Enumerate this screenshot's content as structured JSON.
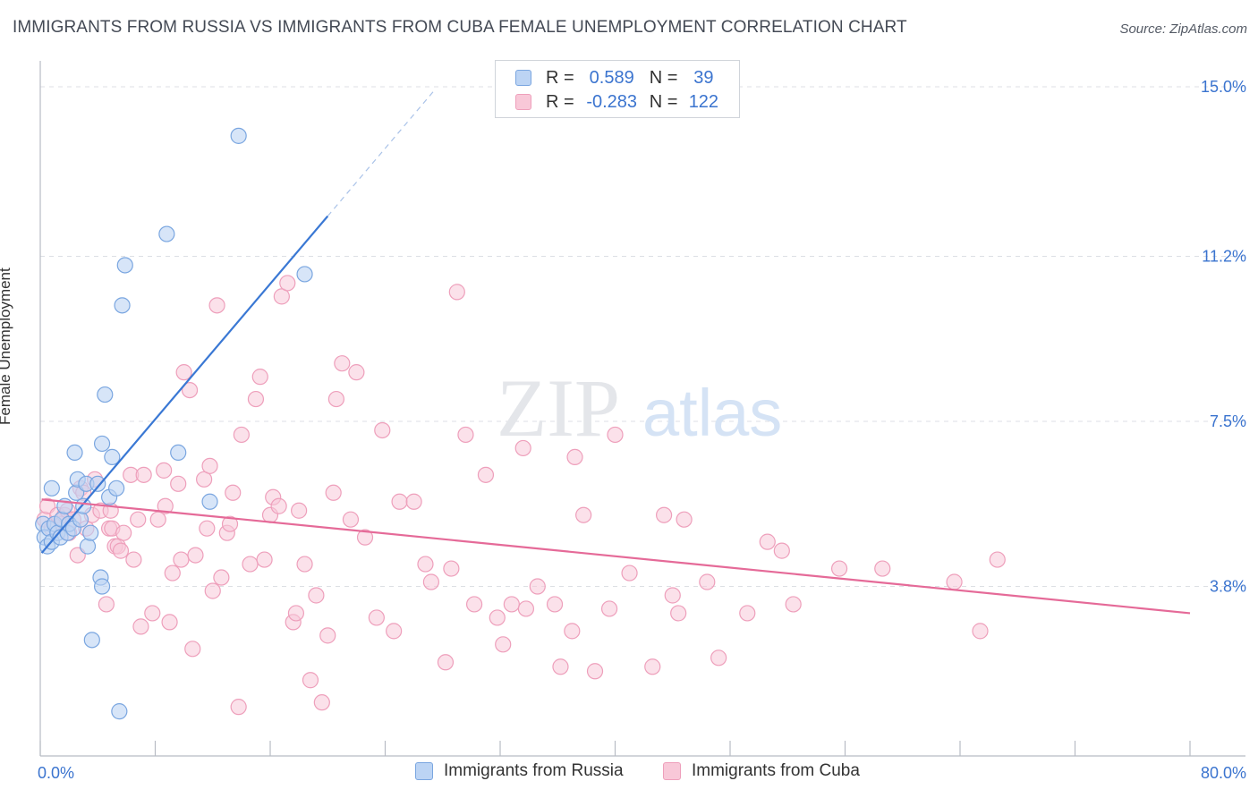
{
  "title": "IMMIGRANTS FROM RUSSIA VS IMMIGRANTS FROM CUBA FEMALE UNEMPLOYMENT CORRELATION CHART",
  "source": "Source: ZipAtlas.com",
  "watermark": {
    "zip": "ZIP",
    "atlas": "atlas"
  },
  "legend": {
    "russia": {
      "r_label": "R =",
      "r_value": "0.589",
      "n_label": "N =",
      "n_value": "39"
    },
    "cuba": {
      "r_label": "R =",
      "r_value": "-0.283",
      "n_label": "N =",
      "n_value": "122"
    }
  },
  "colors": {
    "russia_fill": "#bcd4f4",
    "russia_stroke": "#7aa6e0",
    "russia_line": "#3a78d4",
    "cuba_fill": "#f8c8d8",
    "cuba_stroke": "#ee9fbb",
    "cuba_line": "#e56a98",
    "axis_text": "#3b74cf",
    "grid": "#dcdfe4"
  },
  "chart_data": {
    "type": "scatter",
    "title": "IMMIGRANTS FROM RUSSIA VS IMMIGRANTS FROM CUBA FEMALE UNEMPLOYMENT CORRELATION CHART",
    "xlabel": "",
    "ylabel": "Female Unemployment",
    "xlim": [
      0,
      80
    ],
    "ylim": [
      0,
      15.5
    ],
    "x_tick_labels": [
      "0.0%",
      "80.0%"
    ],
    "y_ticks": [
      3.8,
      7.5,
      11.2,
      15.0
    ],
    "y_tick_labels": [
      "3.8%",
      "7.5%",
      "11.2%",
      "15.0%"
    ],
    "grid": true,
    "legend_position": "top-center",
    "series": [
      {
        "name": "Immigrants from Russia",
        "r": 0.589,
        "n": 39,
        "trend": {
          "x0": 0.1,
          "y0": 4.55,
          "x1": 20,
          "y1": 12.1,
          "dash_x1": 27.5,
          "dash_y1": 14.95
        },
        "points": [
          [
            0.2,
            5.2
          ],
          [
            0.3,
            4.9
          ],
          [
            0.5,
            4.7
          ],
          [
            0.6,
            5.1
          ],
          [
            0.8,
            4.8
          ],
          [
            0.8,
            6.0
          ],
          [
            1.0,
            5.2
          ],
          [
            1.2,
            5.0
          ],
          [
            1.4,
            4.9
          ],
          [
            1.5,
            5.3
          ],
          [
            1.7,
            5.6
          ],
          [
            1.9,
            5.0
          ],
          [
            2.0,
            5.2
          ],
          [
            2.3,
            5.1
          ],
          [
            2.4,
            6.8
          ],
          [
            2.5,
            5.9
          ],
          [
            2.6,
            6.2
          ],
          [
            2.8,
            5.3
          ],
          [
            3.0,
            5.6
          ],
          [
            3.2,
            6.1
          ],
          [
            3.3,
            4.7
          ],
          [
            3.5,
            5.0
          ],
          [
            3.6,
            2.6
          ],
          [
            4.0,
            6.1
          ],
          [
            4.2,
            4.0
          ],
          [
            4.3,
            3.8
          ],
          [
            4.3,
            7.0
          ],
          [
            4.5,
            8.1
          ],
          [
            4.8,
            5.8
          ],
          [
            5.0,
            6.7
          ],
          [
            5.3,
            6.0
          ],
          [
            5.5,
            1.0
          ],
          [
            5.7,
            10.1
          ],
          [
            5.9,
            11.0
          ],
          [
            8.8,
            11.7
          ],
          [
            9.6,
            6.8
          ],
          [
            11.8,
            5.7
          ],
          [
            13.8,
            13.9
          ],
          [
            18.4,
            10.8
          ]
        ]
      },
      {
        "name": "Immigrants from Cuba",
        "r": -0.283,
        "n": 122,
        "trend": {
          "x0": 0.1,
          "y0": 5.75,
          "x1": 80,
          "y1": 3.2
        },
        "points": [
          [
            0.3,
            5.3
          ],
          [
            0.5,
            5.6
          ],
          [
            0.8,
            5.1
          ],
          [
            1.2,
            5.4
          ],
          [
            1.5,
            5.2
          ],
          [
            1.7,
            5.4
          ],
          [
            1.9,
            5.5
          ],
          [
            2.0,
            5.0
          ],
          [
            2.3,
            5.3
          ],
          [
            2.6,
            4.5
          ],
          [
            2.8,
            6.0
          ],
          [
            3.0,
            5.9
          ],
          [
            3.2,
            5.1
          ],
          [
            3.6,
            5.4
          ],
          [
            3.8,
            6.2
          ],
          [
            4.2,
            5.5
          ],
          [
            4.6,
            3.4
          ],
          [
            4.8,
            5.1
          ],
          [
            4.9,
            5.5
          ],
          [
            5.0,
            5.1
          ],
          [
            5.2,
            4.7
          ],
          [
            5.4,
            4.7
          ],
          [
            5.6,
            4.6
          ],
          [
            5.8,
            5.0
          ],
          [
            6.3,
            6.3
          ],
          [
            6.5,
            4.4
          ],
          [
            6.8,
            5.3
          ],
          [
            7.0,
            2.9
          ],
          [
            7.2,
            6.3
          ],
          [
            7.8,
            3.2
          ],
          [
            8.2,
            5.3
          ],
          [
            8.6,
            6.4
          ],
          [
            8.7,
            5.6
          ],
          [
            9.0,
            3.0
          ],
          [
            9.2,
            4.1
          ],
          [
            9.6,
            6.1
          ],
          [
            9.8,
            4.4
          ],
          [
            10.0,
            8.6
          ],
          [
            10.4,
            8.2
          ],
          [
            10.6,
            2.4
          ],
          [
            10.8,
            4.5
          ],
          [
            11.4,
            6.2
          ],
          [
            11.6,
            5.1
          ],
          [
            11.8,
            6.5
          ],
          [
            12.0,
            3.7
          ],
          [
            12.3,
            10.1
          ],
          [
            12.6,
            4.0
          ],
          [
            13.0,
            5.0
          ],
          [
            13.2,
            5.2
          ],
          [
            13.4,
            5.9
          ],
          [
            13.8,
            1.1
          ],
          [
            14.0,
            7.2
          ],
          [
            14.6,
            4.3
          ],
          [
            15.0,
            8.0
          ],
          [
            15.3,
            8.5
          ],
          [
            15.6,
            4.4
          ],
          [
            16.0,
            5.4
          ],
          [
            16.2,
            5.8
          ],
          [
            16.6,
            5.6
          ],
          [
            16.8,
            10.3
          ],
          [
            17.2,
            10.6
          ],
          [
            17.6,
            3.0
          ],
          [
            17.8,
            3.2
          ],
          [
            18.0,
            5.5
          ],
          [
            18.4,
            4.3
          ],
          [
            18.8,
            1.7
          ],
          [
            19.2,
            3.6
          ],
          [
            19.6,
            1.2
          ],
          [
            20.0,
            2.7
          ],
          [
            20.4,
            5.9
          ],
          [
            20.6,
            8.0
          ],
          [
            21.0,
            8.8
          ],
          [
            21.6,
            5.3
          ],
          [
            22.0,
            8.6
          ],
          [
            22.6,
            4.9
          ],
          [
            23.4,
            3.1
          ],
          [
            23.8,
            7.3
          ],
          [
            24.6,
            2.8
          ],
          [
            25.0,
            5.7
          ],
          [
            26.0,
            5.7
          ],
          [
            26.8,
            4.3
          ],
          [
            27.2,
            3.9
          ],
          [
            28.2,
            2.1
          ],
          [
            28.6,
            4.2
          ],
          [
            29.0,
            10.4
          ],
          [
            29.6,
            7.2
          ],
          [
            30.2,
            3.4
          ],
          [
            31.0,
            6.3
          ],
          [
            31.8,
            3.1
          ],
          [
            32.2,
            2.5
          ],
          [
            32.8,
            3.4
          ],
          [
            33.6,
            6.9
          ],
          [
            33.8,
            3.3
          ],
          [
            34.6,
            3.8
          ],
          [
            35.8,
            3.4
          ],
          [
            36.2,
            2.0
          ],
          [
            37.0,
            2.8
          ],
          [
            37.2,
            6.7
          ],
          [
            37.8,
            5.4
          ],
          [
            38.6,
            1.9
          ],
          [
            39.6,
            3.3
          ],
          [
            40.0,
            7.2
          ],
          [
            41.0,
            4.1
          ],
          [
            42.6,
            2.0
          ],
          [
            43.4,
            5.4
          ],
          [
            44.0,
            3.6
          ],
          [
            44.4,
            3.2
          ],
          [
            44.8,
            5.3
          ],
          [
            46.4,
            3.9
          ],
          [
            47.2,
            2.2
          ],
          [
            49.2,
            3.2
          ],
          [
            50.6,
            4.8
          ],
          [
            51.6,
            4.6
          ],
          [
            52.4,
            3.4
          ],
          [
            55.6,
            4.2
          ],
          [
            58.6,
            4.2
          ],
          [
            63.6,
            3.9
          ],
          [
            65.4,
            2.8
          ],
          [
            66.6,
            4.4
          ]
        ]
      }
    ]
  },
  "bottom_legend": {
    "russia": "Immigrants from Russia",
    "cuba": "Immigrants from Cuba"
  }
}
